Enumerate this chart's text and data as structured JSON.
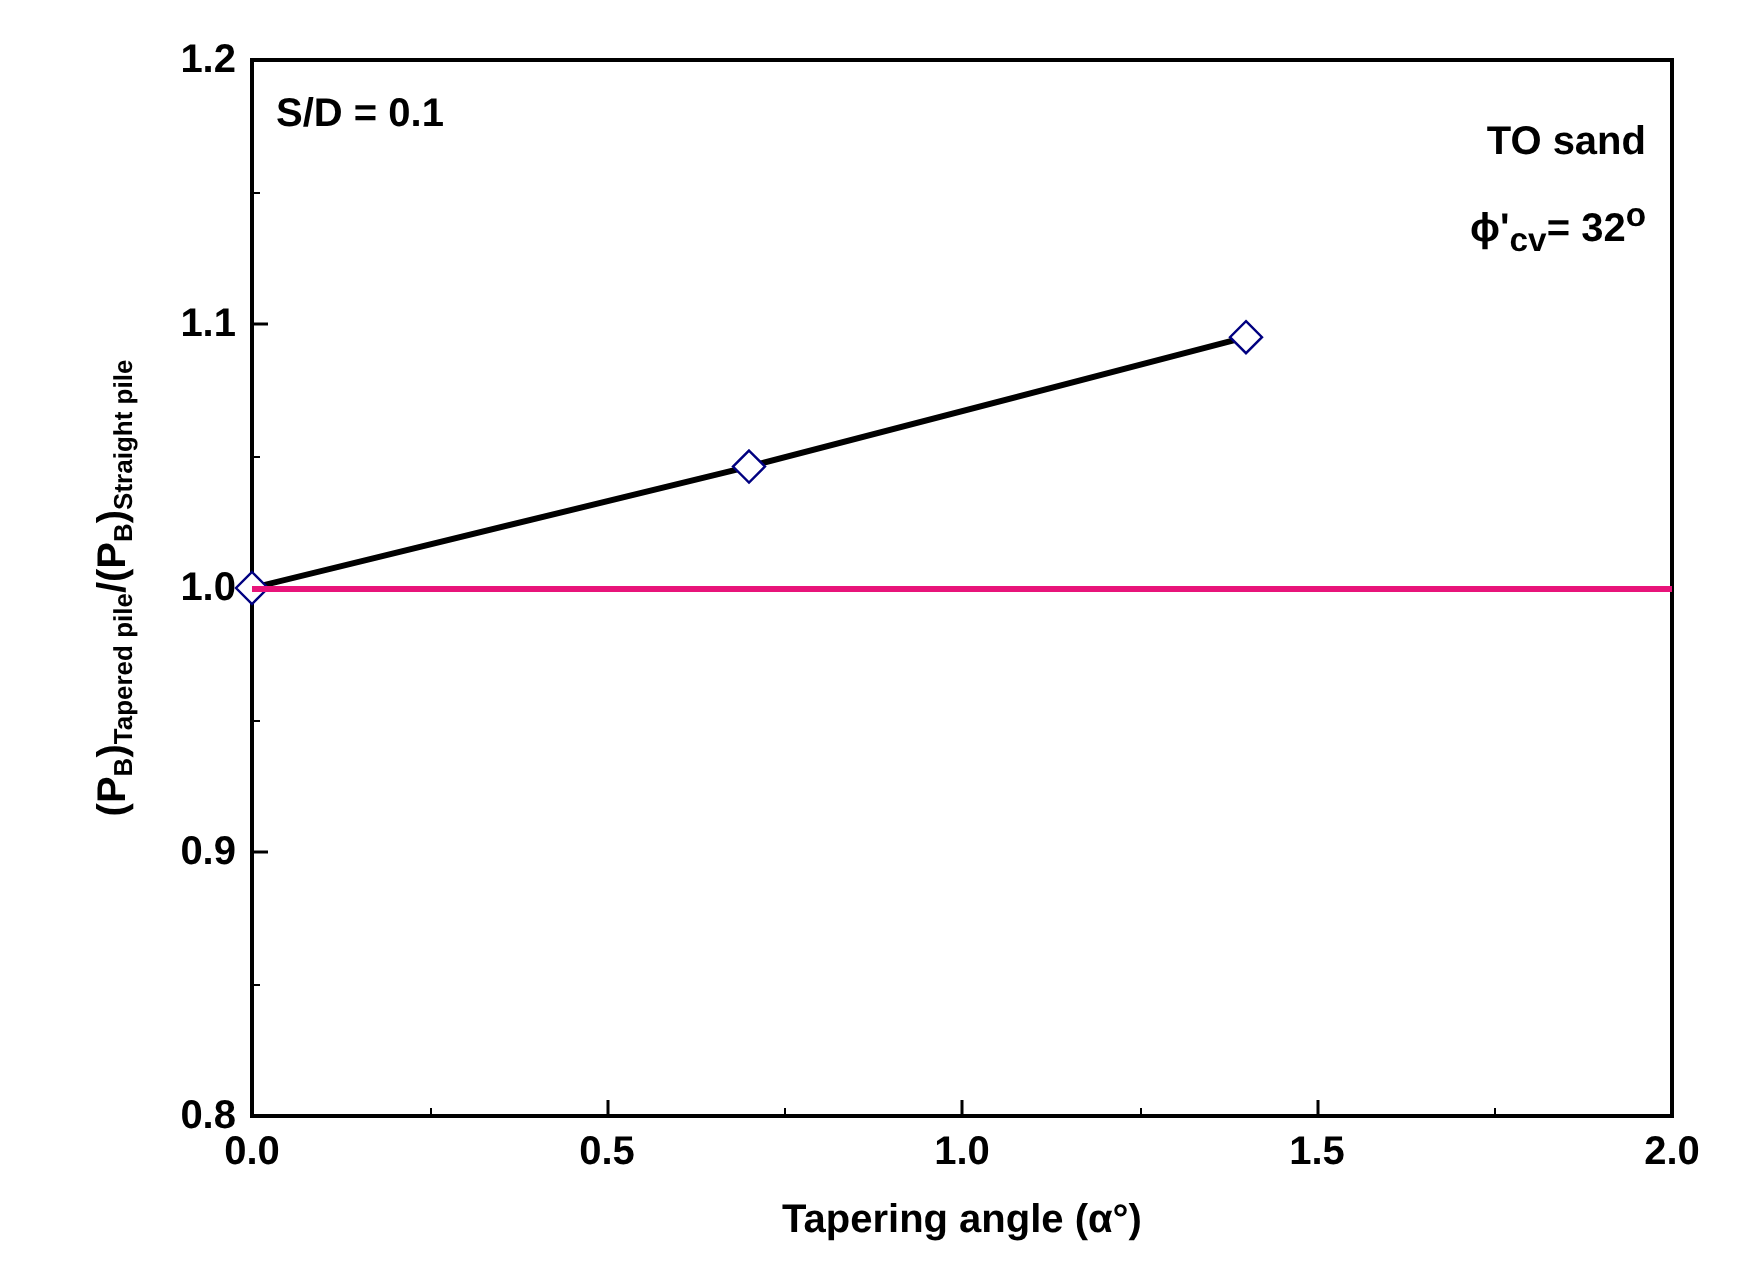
{
  "chart_data": {
    "type": "line",
    "xlabel": "Tapering angle (α°)",
    "ylabel": "(P$_{B}$)$_{Tapered pile}$/(P$_{B}$)$_{Straight pile}$",
    "series": [
      {
        "color": "#000000",
        "colors": [
          "#000080",
          "#000080",
          "#000080"
        ],
        "x": [
          0,
          0.7,
          1.4
        ],
        "values": [
          1.0,
          1.046,
          1.095
        ]
      }
    ],
    "xlim": [
      0,
      2
    ],
    "xticks": [
      {
        "value": 0,
        "label": "0.0"
      },
      {
        "value": 0.5,
        "label": "0.5"
      },
      {
        "value": 1,
        "label": "1.0"
      },
      {
        "value": 1.5,
        "label": "1.5"
      },
      {
        "value": 2,
        "label": "2.0"
      }
    ],
    "ylim": [
      0.8,
      1.2
    ],
    "yticks": [
      0.8,
      0.9,
      {
        "value": 1,
        "label": "1.0"
      },
      1.1,
      1.2
    ],
    "ref_lines": [
      {
        "axis": "y",
        "value": 1.0,
        "color": "#e8147a",
        "line_style": "solid"
      }
    ],
    "annotations": [
      "S/D = 0.1",
      "TO sand",
      "ϕ'$_{cv}$= 32$^{o}$"
    ],
    "marker": "diamond",
    "line_style": "solid"
  }
}
